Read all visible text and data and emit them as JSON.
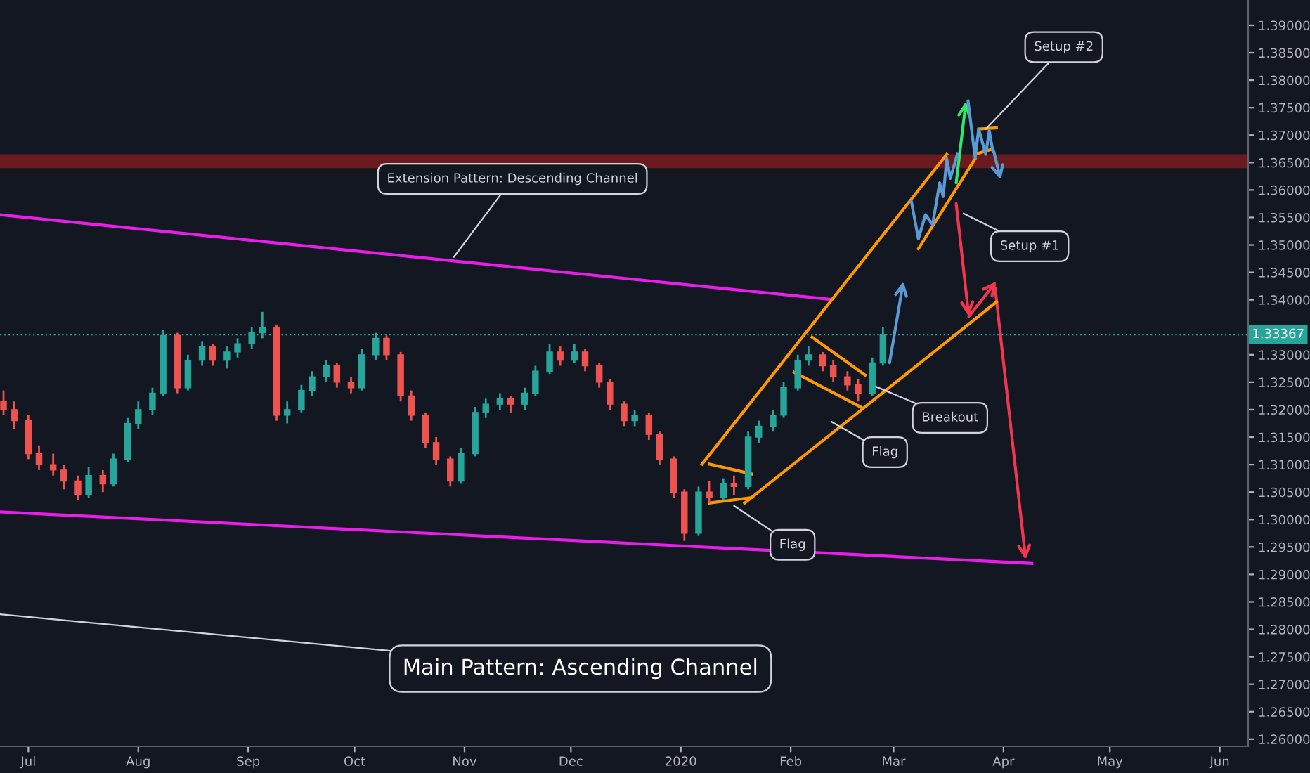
{
  "chart_data": {
    "type": "candlestick",
    "x": [
      "2019-06-24",
      "2019-06-27",
      "2019-07-01",
      "2019-07-04",
      "2019-07-08",
      "2019-07-11",
      "2019-07-15",
      "2019-07-18",
      "2019-07-22",
      "2019-07-25",
      "2019-07-29",
      "2019-08-01",
      "2019-08-05",
      "2019-08-08",
      "2019-08-12",
      "2019-08-15",
      "2019-08-19",
      "2019-08-22",
      "2019-08-26",
      "2019-08-29",
      "2019-09-02",
      "2019-09-05",
      "2019-09-09",
      "2019-09-12",
      "2019-09-16",
      "2019-09-19",
      "2019-09-23",
      "2019-09-26",
      "2019-09-30",
      "2019-10-03",
      "2019-10-07",
      "2019-10-10",
      "2019-10-14",
      "2019-10-17",
      "2019-10-21",
      "2019-10-24",
      "2019-10-28",
      "2019-10-31",
      "2019-11-04",
      "2019-11-07",
      "2019-11-11",
      "2019-11-14",
      "2019-11-18",
      "2019-11-21",
      "2019-11-25",
      "2019-11-28",
      "2019-12-02",
      "2019-12-05",
      "2019-12-09",
      "2019-12-12",
      "2019-12-16",
      "2019-12-19",
      "2019-12-23",
      "2019-12-26",
      "2019-12-30",
      "2020-01-02",
      "2020-01-06",
      "2020-01-09",
      "2020-01-13",
      "2020-01-16",
      "2020-01-20",
      "2020-01-23",
      "2020-01-27",
      "2020-01-30",
      "2020-02-03",
      "2020-02-06",
      "2020-02-10",
      "2020-02-13",
      "2020-02-17",
      "2020-02-20",
      "2020-02-24",
      "2020-02-27"
    ],
    "ohlc": [
      [
        1.3215,
        1.3235,
        1.319,
        1.32
      ],
      [
        1.32,
        1.3215,
        1.3165,
        1.318
      ],
      [
        1.318,
        1.319,
        1.311,
        1.312
      ],
      [
        1.312,
        1.3135,
        1.309,
        1.31
      ],
      [
        1.31,
        1.312,
        1.308,
        1.309
      ],
      [
        1.309,
        1.31,
        1.3055,
        1.307
      ],
      [
        1.307,
        1.308,
        1.3035,
        1.3045
      ],
      [
        1.3045,
        1.3095,
        1.304,
        1.308
      ],
      [
        1.308,
        1.309,
        1.305,
        1.3065
      ],
      [
        1.3065,
        1.312,
        1.306,
        1.311
      ],
      [
        1.311,
        1.3185,
        1.3105,
        1.3175
      ],
      [
        1.3175,
        1.3215,
        1.3165,
        1.32
      ],
      [
        1.32,
        1.324,
        1.319,
        1.323
      ],
      [
        1.323,
        1.3345,
        1.3225,
        1.3335
      ],
      [
        1.3335,
        1.334,
        1.323,
        1.324
      ],
      [
        1.324,
        1.33,
        1.3235,
        1.329
      ],
      [
        1.329,
        1.3325,
        1.328,
        1.3315
      ],
      [
        1.3315,
        1.332,
        1.328,
        1.329
      ],
      [
        1.329,
        1.3315,
        1.3275,
        1.3305
      ],
      [
        1.3305,
        1.333,
        1.3295,
        1.332
      ],
      [
        1.332,
        1.335,
        1.331,
        1.334
      ],
      [
        1.334,
        1.3378,
        1.333,
        1.335
      ],
      [
        1.335,
        1.3355,
        1.318,
        1.319
      ],
      [
        1.319,
        1.3215,
        1.3175,
        1.32
      ],
      [
        1.32,
        1.3245,
        1.3195,
        1.3235
      ],
      [
        1.3235,
        1.327,
        1.3225,
        1.326
      ],
      [
        1.326,
        1.329,
        1.325,
        1.328
      ],
      [
        1.328,
        1.3285,
        1.324,
        1.325
      ],
      [
        1.325,
        1.326,
        1.323,
        1.324
      ],
      [
        1.324,
        1.331,
        1.3235,
        1.33
      ],
      [
        1.33,
        1.334,
        1.329,
        1.333
      ],
      [
        1.333,
        1.3335,
        1.329,
        1.33
      ],
      [
        1.33,
        1.3305,
        1.3215,
        1.3225
      ],
      [
        1.3225,
        1.3235,
        1.318,
        1.319
      ],
      [
        1.319,
        1.3195,
        1.313,
        1.314
      ],
      [
        1.314,
        1.315,
        1.31,
        1.311
      ],
      [
        1.311,
        1.3115,
        1.306,
        1.307
      ],
      [
        1.307,
        1.313,
        1.3065,
        1.312
      ],
      [
        1.312,
        1.3205,
        1.3115,
        1.3195
      ],
      [
        1.3195,
        1.322,
        1.3185,
        1.321
      ],
      [
        1.321,
        1.323,
        1.32,
        1.322
      ],
      [
        1.322,
        1.3225,
        1.3195,
        1.321
      ],
      [
        1.321,
        1.324,
        1.32,
        1.323
      ],
      [
        1.323,
        1.328,
        1.3225,
        1.327
      ],
      [
        1.327,
        1.332,
        1.3265,
        1.3305
      ],
      [
        1.3305,
        1.3315,
        1.328,
        1.329
      ],
      [
        1.329,
        1.332,
        1.3285,
        1.3305
      ],
      [
        1.3305,
        1.331,
        1.327,
        1.328
      ],
      [
        1.328,
        1.3285,
        1.324,
        1.325
      ],
      [
        1.325,
        1.3255,
        1.32,
        1.321
      ],
      [
        1.321,
        1.3215,
        1.317,
        1.318
      ],
      [
        1.318,
        1.32,
        1.317,
        1.319
      ],
      [
        1.319,
        1.3195,
        1.3145,
        1.3155
      ],
      [
        1.3155,
        1.316,
        1.31,
        1.311
      ],
      [
        1.311,
        1.3115,
        1.304,
        1.305
      ],
      [
        1.305,
        1.3055,
        1.2961,
        1.2975
      ],
      [
        1.2975,
        1.306,
        1.297,
        1.305
      ],
      [
        1.305,
        1.307,
        1.303,
        1.304
      ],
      [
        1.304,
        1.3075,
        1.3035,
        1.3065
      ],
      [
        1.3065,
        1.308,
        1.3045,
        1.306
      ],
      [
        1.306,
        1.316,
        1.3055,
        1.315
      ],
      [
        1.315,
        1.318,
        1.314,
        1.317
      ],
      [
        1.317,
        1.32,
        1.316,
        1.319
      ],
      [
        1.319,
        1.325,
        1.3185,
        1.324
      ],
      [
        1.324,
        1.33,
        1.3235,
        1.329
      ],
      [
        1.329,
        1.3315,
        1.328,
        1.33
      ],
      [
        1.33,
        1.3305,
        1.327,
        1.328
      ],
      [
        1.328,
        1.329,
        1.325,
        1.326
      ],
      [
        1.326,
        1.327,
        1.3235,
        1.3245
      ],
      [
        1.3245,
        1.3255,
        1.3215,
        1.323
      ],
      [
        1.323,
        1.3295,
        1.3225,
        1.3285
      ],
      [
        1.3285,
        1.335,
        1.328,
        1.33367
      ]
    ],
    "series": [
      {
        "type": "line",
        "color": "#e91ee9",
        "x": [
          "2019-06-23",
          "2020-02-12"
        ],
        "values": [
          1.3555,
          1.3401
        ]
      },
      {
        "type": "line",
        "color": "#e91ee9",
        "x": [
          "2019-06-23",
          "2020-04-09"
        ],
        "values": [
          1.3014,
          1.292
        ]
      },
      {
        "type": "line",
        "color": "#ff9800",
        "x": [
          "2020-01-07",
          "2020-03-16"
        ],
        "values": [
          1.3101,
          1.3665
        ]
      },
      {
        "type": "line",
        "color": "#ff9800",
        "x": [
          "2020-01-19",
          "2020-03-30"
        ],
        "values": [
          1.303,
          1.3396
        ]
      },
      {
        "type": "line",
        "color": "#ff9800",
        "x": [
          "2020-01-09",
          "2020-01-21"
        ],
        "values": [
          1.3101,
          1.3083
        ]
      },
      {
        "type": "line",
        "color": "#ff9800",
        "x": [
          "2020-01-09",
          "2020-01-21"
        ],
        "values": [
          1.303,
          1.304
        ]
      },
      {
        "type": "line",
        "color": "#ff9800",
        "x": [
          "2020-02-07",
          "2020-02-22"
        ],
        "values": [
          1.3332,
          1.3263
        ]
      },
      {
        "type": "line",
        "color": "#ff9800",
        "x": [
          "2020-02-02",
          "2020-02-21"
        ],
        "values": [
          1.3268,
          1.3204
        ]
      },
      {
        "type": "line",
        "color": "#ff9800",
        "x": [
          "2020-03-08",
          "2020-03-24"
        ],
        "values": [
          1.3493,
          1.3657
        ]
      },
      {
        "type": "line",
        "color": "#ff9800",
        "x": [
          "2020-03-25",
          "2020-03-30"
        ],
        "values": [
          1.3711,
          1.3713
        ]
      },
      {
        "type": "line",
        "color": "#ff9800",
        "x": [
          "2020-03-24",
          "2020-03-29"
        ],
        "values": [
          1.3665,
          1.3675
        ]
      },
      {
        "type": "line",
        "color": "#5b9bd5",
        "x": [
          "2020-03-06",
          "2020-03-08",
          "2020-03-10",
          "2020-03-12",
          "2020-03-14",
          "2020-03-15",
          "2020-03-16",
          "2020-03-17",
          "2020-03-19"
        ],
        "values": [
          1.358,
          1.3511,
          1.3555,
          1.3537,
          1.3613,
          1.3588,
          1.3657,
          1.3621,
          1.3665
        ]
      },
      {
        "type": "line",
        "color": "#5b9bd5",
        "x": [
          "2020-03-22",
          "2020-03-24",
          "2020-03-25",
          "2020-03-27",
          "2020-03-28",
          "2020-03-29"
        ],
        "values": [
          1.3762,
          1.3659,
          1.3711,
          1.3665,
          1.3708,
          1.367
        ]
      }
    ],
    "bands": [
      {
        "axis": "y",
        "from": 1.364,
        "to": 1.3665,
        "color": "#6b1b1f"
      }
    ],
    "ref_lines": [
      {
        "axis": "y",
        "value": 1.33367,
        "label": "1.33367",
        "color": "#26a69a",
        "line_style": "dotted"
      }
    ],
    "annotations": [
      {
        "text": "Extension Pattern: Descending Channel",
        "x": "2019-10-29",
        "y": 1.3478
      },
      "Main Pattern: Ascending Channel",
      {
        "text": "Flag",
        "x": "2020-01-16",
        "y": 1.3025
      },
      "Flag",
      {
        "text": "Breakout",
        "x": "2020-02-25",
        "y": 1.3242
      },
      "Setup #1",
      {
        "text": "Setup #2",
        "x": "2020-03-27",
        "y": 1.3711
      }
    ],
    "xlim": [
      "2019-06-23",
      "2020-06-09"
    ],
    "xticks": [
      {
        "value": "2019-07-01",
        "label": "Jul"
      },
      {
        "value": "2019-08-01",
        "label": "Aug"
      },
      {
        "value": "2019-09-01",
        "label": "Sep"
      },
      {
        "value": "2019-10-01",
        "label": "Oct"
      },
      {
        "value": "2019-11-01",
        "label": "Nov"
      },
      {
        "value": "2019-12-01",
        "label": "Dec"
      },
      {
        "value": "2020-01-01",
        "label": "2020"
      },
      {
        "value": "2020-02-01",
        "label": "Feb"
      },
      {
        "value": "2020-03-01",
        "label": "Mar"
      },
      {
        "value": "2020-04-01",
        "label": "Apr"
      },
      {
        "value": "2020-05-01",
        "label": "May"
      },
      {
        "value": "2020-06-01",
        "label": "Jun"
      }
    ],
    "ylim": [
      1.2587,
      1.3946
    ],
    "yticks": [
      {
        "value": 1.26,
        "label": "1.26000"
      },
      {
        "value": 1.265,
        "label": "1.26500"
      },
      {
        "value": 1.27,
        "label": "1.27000"
      },
      {
        "value": 1.275,
        "label": "1.27500"
      },
      {
        "value": 1.28,
        "label": "1.28000"
      },
      {
        "value": 1.285,
        "label": "1.28500"
      },
      {
        "value": 1.29,
        "label": "1.29000"
      },
      {
        "value": 1.295,
        "label": "1.29500"
      },
      {
        "value": 1.3,
        "label": "1.30000"
      },
      {
        "value": 1.305,
        "label": "1.30500"
      },
      {
        "value": 1.31,
        "label": "1.31000"
      },
      {
        "value": 1.315,
        "label": "1.31500"
      },
      {
        "value": 1.32,
        "label": "1.32000"
      },
      {
        "value": 1.325,
        "label": "1.32500"
      },
      {
        "value": 1.33,
        "label": "1.33000"
      },
      {
        "value": 1.34,
        "label": "1.34000"
      },
      {
        "value": 1.345,
        "label": "1.34500"
      },
      {
        "value": 1.35,
        "label": "1.35000"
      },
      {
        "value": 1.355,
        "label": "1.35500"
      },
      {
        "value": 1.36,
        "label": "1.36000"
      },
      {
        "value": 1.365,
        "label": "1.36500"
      },
      {
        "value": 1.37,
        "label": "1.37000"
      },
      {
        "value": 1.375,
        "label": "1.37500"
      },
      {
        "value": 1.38,
        "label": "1.38000"
      },
      {
        "value": 1.385,
        "label": "1.38500"
      },
      {
        "value": 1.39,
        "label": "1.39000"
      }
    ],
    "grid": false
  }
}
